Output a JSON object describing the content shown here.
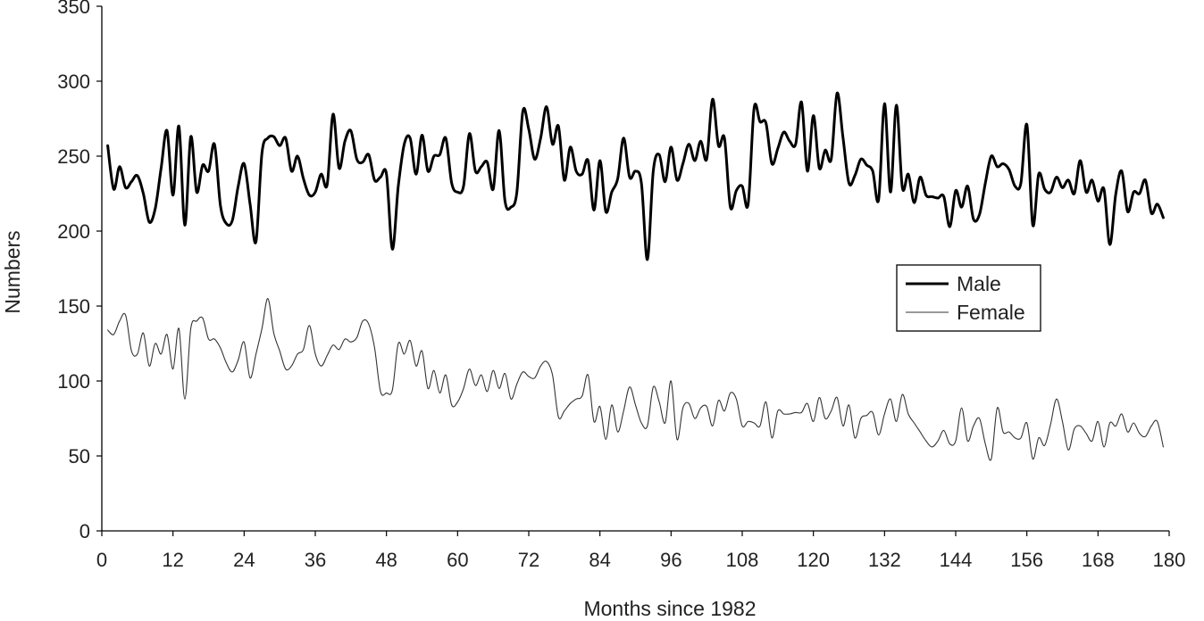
{
  "chart_data": {
    "type": "line",
    "title": "",
    "xlabel": "Months since 1982",
    "ylabel": "Numbers",
    "xlim": [
      0,
      180
    ],
    "ylim": [
      0,
      350
    ],
    "xticks": [
      0,
      12,
      24,
      36,
      48,
      60,
      72,
      84,
      96,
      108,
      120,
      132,
      144,
      156,
      168,
      180
    ],
    "yticks": [
      0,
      50,
      100,
      150,
      200,
      250,
      300,
      350
    ],
    "grid": false,
    "legend_position": "right",
    "series": [
      {
        "name": "Male",
        "color": "#000000",
        "x": [
          1,
          2,
          3,
          4,
          5,
          6,
          7,
          8,
          9,
          10,
          11,
          12,
          13,
          14,
          15,
          16,
          17,
          18,
          19,
          20,
          21,
          22,
          23,
          24,
          25,
          26,
          27,
          28,
          29,
          30,
          31,
          32,
          33,
          34,
          35,
          36,
          37,
          38,
          39,
          40,
          41,
          42,
          43,
          44,
          45,
          46,
          47,
          48,
          49,
          50,
          51,
          52,
          53,
          54,
          55,
          56,
          57,
          58,
          59,
          60,
          61,
          62,
          63,
          64,
          65,
          66,
          67,
          68,
          69,
          70,
          71,
          72,
          73,
          74,
          75,
          76,
          77,
          78,
          79,
          80,
          81,
          82,
          83,
          84,
          85,
          86,
          87,
          88,
          89,
          90,
          91,
          92,
          93,
          94,
          95,
          96,
          97,
          98,
          99,
          100,
          101,
          102,
          103,
          104,
          105,
          106,
          107,
          108,
          109,
          110,
          111,
          112,
          113,
          114,
          115,
          116,
          117,
          118,
          119,
          120,
          121,
          122,
          123,
          124,
          125,
          126,
          127,
          128,
          129,
          130,
          131,
          132,
          133,
          134,
          135,
          136,
          137,
          138,
          139,
          140,
          141,
          142,
          143,
          144,
          145,
          146,
          147,
          148,
          149,
          150,
          151,
          152,
          153,
          154,
          155,
          156,
          157,
          158,
          159,
          160,
          161,
          162,
          163,
          164,
          165,
          166,
          167,
          168,
          169,
          170,
          171,
          172,
          173,
          174,
          175,
          176,
          177,
          178,
          179
        ],
        "values": [
          257,
          228,
          243,
          229,
          233,
          237,
          225,
          206,
          215,
          242,
          267,
          224,
          270,
          204,
          263,
          226,
          244,
          240,
          258,
          217,
          205,
          207,
          230,
          245,
          218,
          193,
          252,
          262,
          263,
          257,
          262,
          240,
          250,
          235,
          224,
          226,
          238,
          231,
          278,
          242,
          260,
          267,
          248,
          246,
          251,
          234,
          236,
          238,
          188,
          230,
          258,
          262,
          238,
          264,
          240,
          250,
          251,
          262,
          232,
          226,
          230,
          265,
          240,
          243,
          246,
          228,
          267,
          220,
          216,
          226,
          280,
          268,
          248,
          262,
          283,
          258,
          270,
          234,
          256,
          240,
          238,
          247,
          214,
          247,
          213,
          226,
          235,
          262,
          236,
          240,
          232,
          181,
          240,
          251,
          233,
          256,
          234,
          245,
          258,
          247,
          260,
          248,
          288,
          257,
          262,
          216,
          227,
          230,
          218,
          282,
          273,
          272,
          245,
          255,
          266,
          260,
          258,
          286,
          240,
          277,
          242,
          254,
          248,
          292,
          262,
          232,
          237,
          248,
          244,
          240,
          221,
          285,
          226,
          284,
          229,
          238,
          219,
          236,
          224,
          223,
          222,
          223,
          203,
          227,
          216,
          230,
          208,
          211,
          232,
          250,
          243,
          245,
          241,
          230,
          232,
          271,
          204,
          238,
          228,
          226,
          236,
          229,
          234,
          225,
          247,
          226,
          234,
          220,
          228,
          191,
          225,
          240,
          213,
          226,
          225,
          234,
          212,
          218,
          209
        ]
      },
      {
        "name": "Female",
        "color": "#333333",
        "x": [
          1,
          2,
          3,
          4,
          5,
          6,
          7,
          8,
          9,
          10,
          11,
          12,
          13,
          14,
          15,
          16,
          17,
          18,
          19,
          20,
          21,
          22,
          23,
          24,
          25,
          26,
          27,
          28,
          29,
          30,
          31,
          32,
          33,
          34,
          35,
          36,
          37,
          38,
          39,
          40,
          41,
          42,
          43,
          44,
          45,
          46,
          47,
          48,
          49,
          50,
          51,
          52,
          53,
          54,
          55,
          56,
          57,
          58,
          59,
          60,
          61,
          62,
          63,
          64,
          65,
          66,
          67,
          68,
          69,
          70,
          71,
          72,
          73,
          74,
          75,
          76,
          77,
          78,
          79,
          80,
          81,
          82,
          83,
          84,
          85,
          86,
          87,
          88,
          89,
          90,
          91,
          92,
          93,
          94,
          95,
          96,
          97,
          98,
          99,
          100,
          101,
          102,
          103,
          104,
          105,
          106,
          107,
          108,
          109,
          110,
          111,
          112,
          113,
          114,
          115,
          116,
          117,
          118,
          119,
          120,
          121,
          122,
          123,
          124,
          125,
          126,
          127,
          128,
          129,
          130,
          131,
          132,
          133,
          134,
          135,
          136,
          137,
          138,
          139,
          140,
          141,
          142,
          143,
          144,
          145,
          146,
          147,
          148,
          149,
          150,
          151,
          152,
          153,
          154,
          155,
          156,
          157,
          158,
          159,
          160,
          161,
          162,
          163,
          164,
          165,
          166,
          167,
          168,
          169,
          170,
          171,
          172,
          173,
          174,
          175,
          176,
          177,
          178,
          179
        ],
        "values": [
          134,
          131,
          140,
          144,
          120,
          118,
          132,
          110,
          125,
          118,
          131,
          108,
          135,
          88,
          135,
          140,
          142,
          128,
          128,
          122,
          112,
          106,
          114,
          126,
          102,
          118,
          135,
          155,
          132,
          120,
          108,
          110,
          118,
          121,
          137,
          118,
          110,
          117,
          124,
          121,
          128,
          126,
          129,
          140,
          138,
          122,
          93,
          92,
          94,
          125,
          118,
          127,
          110,
          120,
          95,
          107,
          92,
          104,
          84,
          86,
          95,
          108,
          97,
          104,
          93,
          107,
          95,
          105,
          88,
          98,
          106,
          103,
          102,
          110,
          113,
          104,
          76,
          80,
          85,
          88,
          90,
          104,
          73,
          83,
          61,
          84,
          66,
          80,
          96,
          84,
          72,
          70,
          96,
          86,
          72,
          100,
          61,
          82,
          85,
          75,
          82,
          83,
          70,
          87,
          80,
          92,
          88,
          70,
          73,
          72,
          70,
          86,
          62,
          80,
          78,
          78,
          79,
          79,
          85,
          73,
          89,
          75,
          80,
          89,
          70,
          84,
          62,
          75,
          77,
          79,
          64,
          78,
          88,
          73,
          91,
          78,
          72,
          66,
          60,
          56,
          60,
          67,
          58,
          60,
          82,
          60,
          70,
          75,
          58,
          48,
          82,
          66,
          66,
          62,
          62,
          72,
          48,
          62,
          57,
          71,
          88,
          73,
          54,
          68,
          70,
          65,
          60,
          73,
          56,
          72,
          70,
          78,
          66,
          72,
          65,
          63,
          70,
          73,
          56
        ]
      }
    ]
  }
}
